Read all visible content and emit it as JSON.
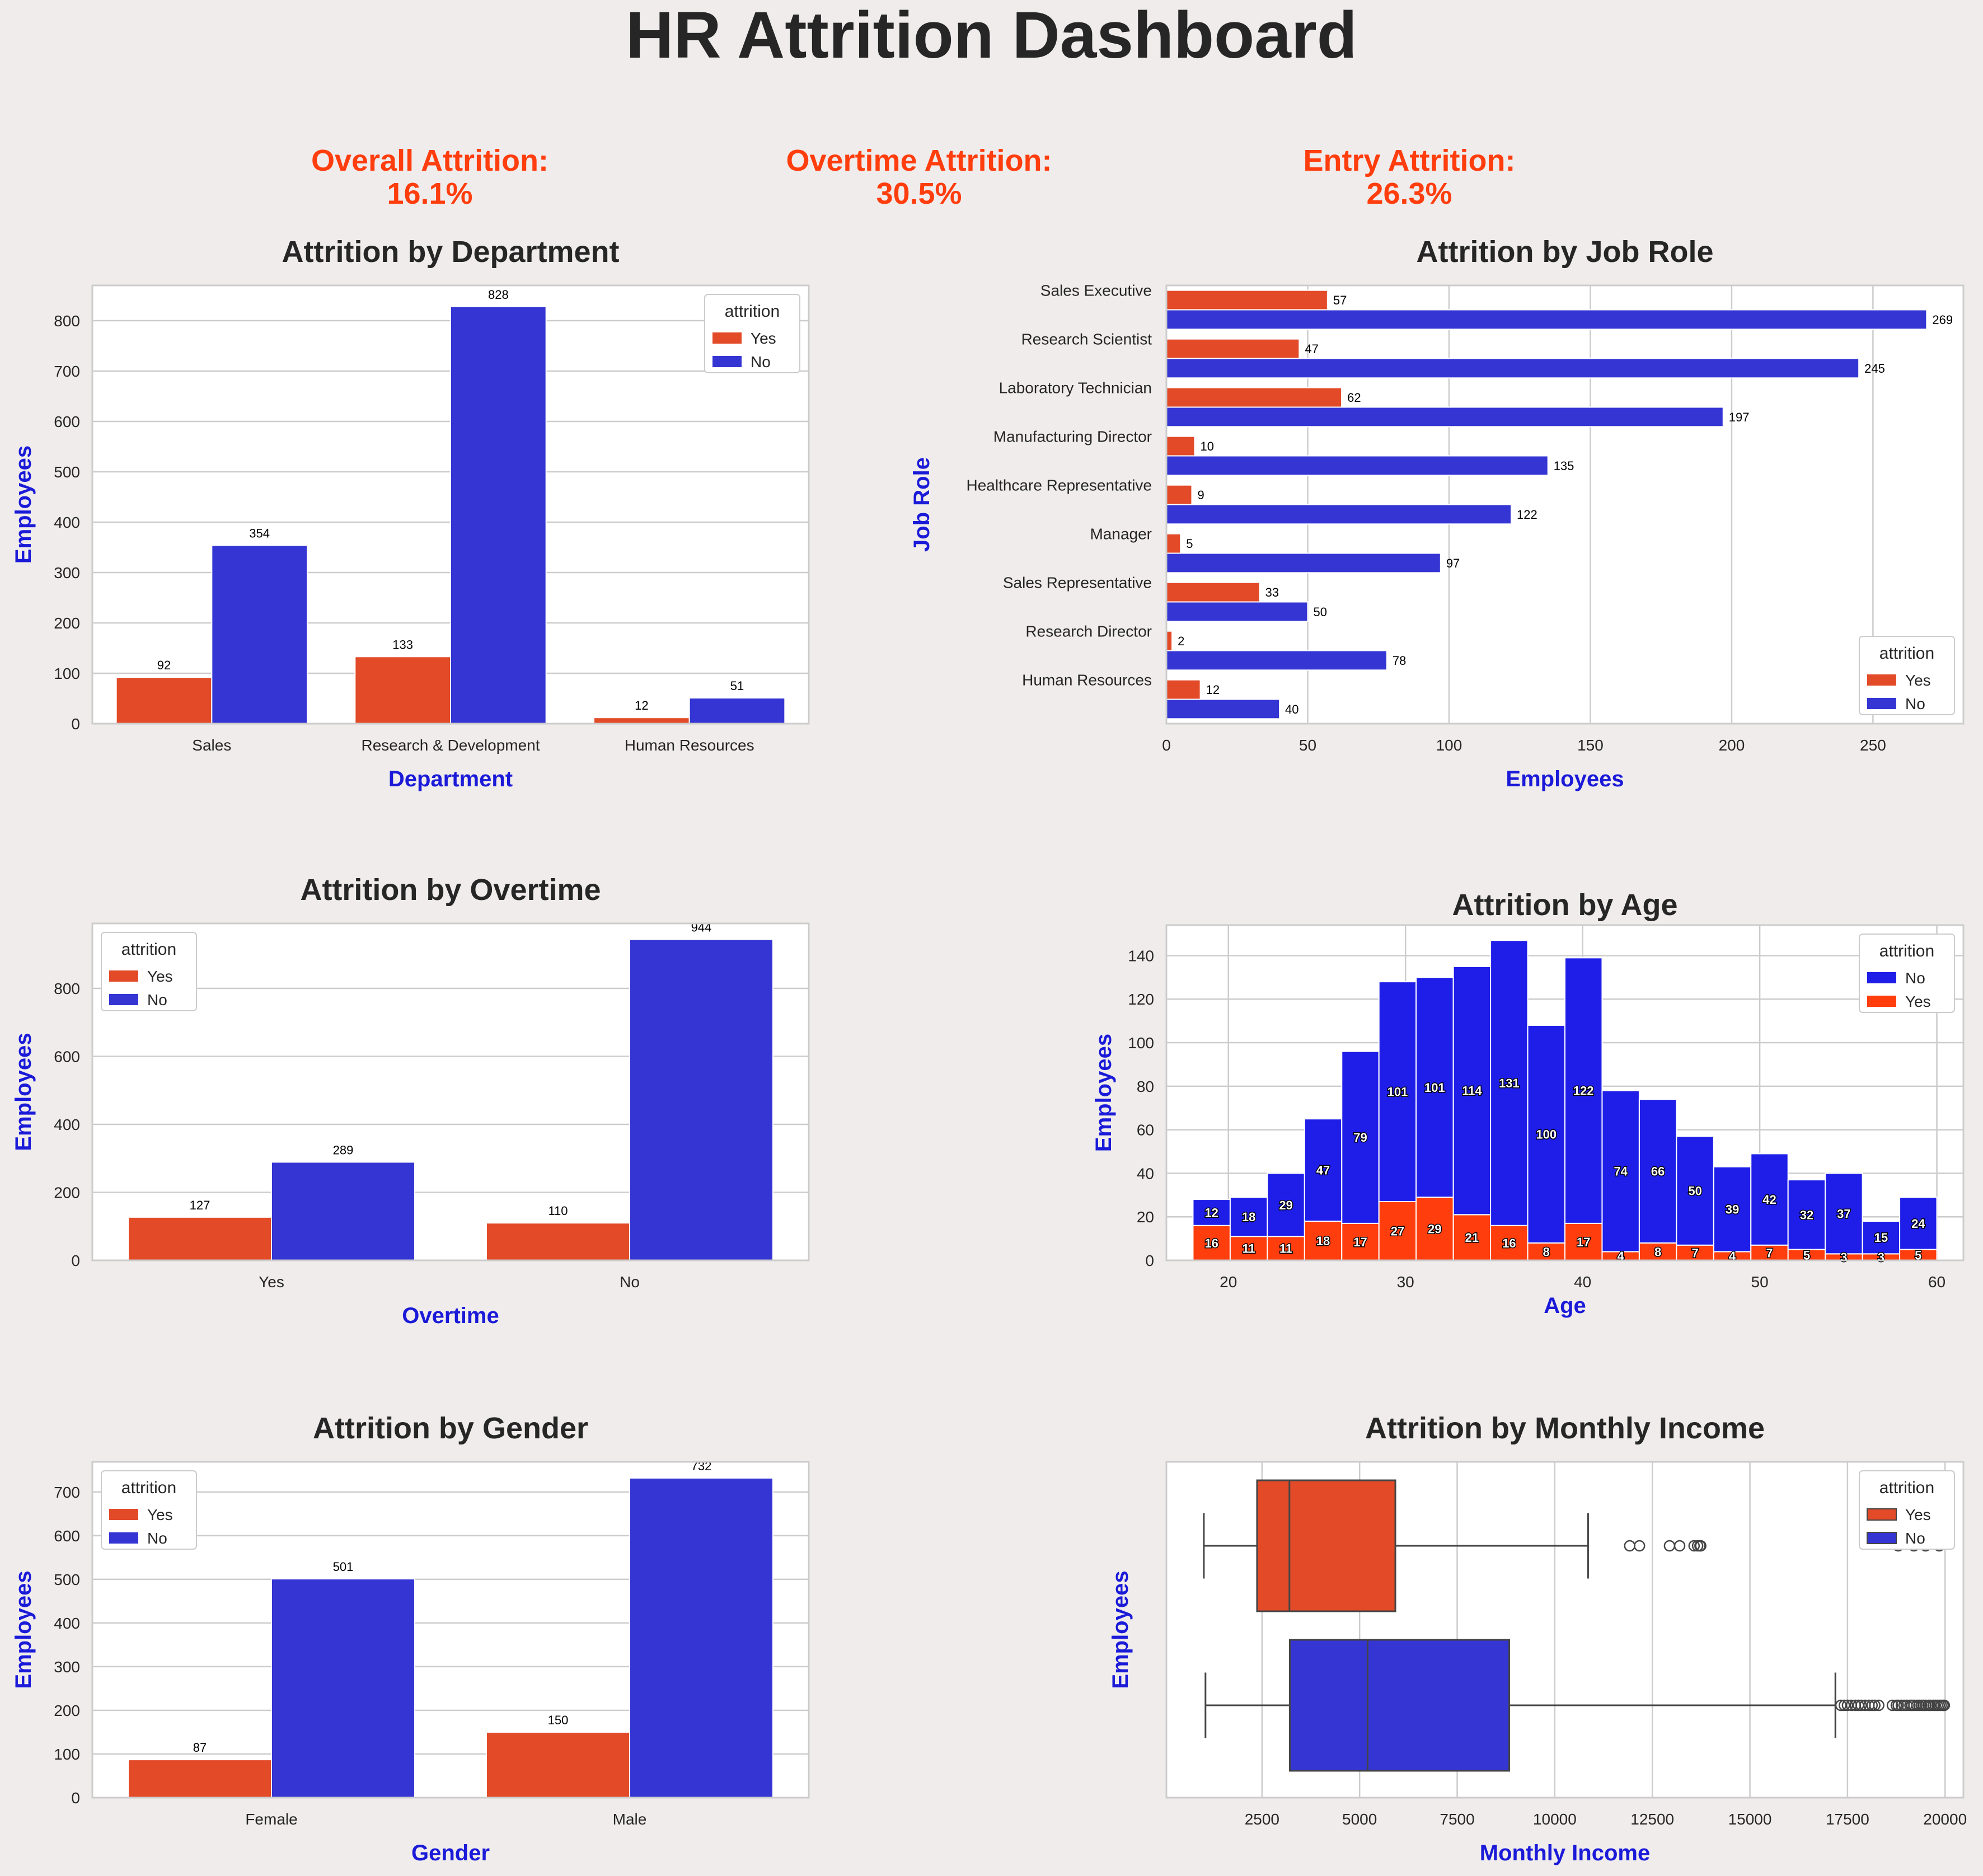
{
  "title": "HR Attrition Dashboard",
  "kpis": [
    {
      "label": "Overall Attrition:",
      "value": "16.1%"
    },
    {
      "label": "Overtime Attrition:",
      "value": "30.5%"
    },
    {
      "label": "Entry Attrition:",
      "value": "26.3%"
    }
  ],
  "colors": {
    "yes": "#e24a28",
    "no": "#3535d4",
    "axis_label": "#1a1ad8",
    "kpi": "#ff3d0d",
    "background": "#f0ecec"
  },
  "chart_data": [
    {
      "id": "department",
      "type": "bar",
      "title": "Attrition by Department",
      "xlabel": "Department",
      "ylabel": "Employees",
      "categories": [
        "Sales",
        "Research & Development",
        "Human Resources"
      ],
      "series": [
        {
          "name": "Yes",
          "values": [
            92,
            133,
            12
          ]
        },
        {
          "name": "No",
          "values": [
            354,
            828,
            51
          ]
        }
      ],
      "yticks": [
        0,
        100,
        200,
        300,
        400,
        500,
        600,
        700,
        800
      ],
      "ylim": [
        0,
        870
      ],
      "legend": {
        "title": "attrition",
        "position": "top-right"
      },
      "grid": true
    },
    {
      "id": "jobrole",
      "type": "bar",
      "orientation": "horizontal",
      "title": "Attrition by Job Role",
      "xlabel": "Employees",
      "ylabel": "Job Role",
      "categories": [
        "Sales Executive",
        "Research Scientist",
        "Laboratory Technician",
        "Manufacturing Director",
        "Healthcare Representative",
        "Manager",
        "Sales Representative",
        "Research Director",
        "Human Resources"
      ],
      "series": [
        {
          "name": "Yes",
          "values": [
            57,
            47,
            62,
            10,
            9,
            5,
            33,
            2,
            12
          ]
        },
        {
          "name": "No",
          "values": [
            269,
            245,
            197,
            135,
            122,
            97,
            50,
            78,
            40
          ]
        }
      ],
      "xticks": [
        0,
        50,
        100,
        150,
        200,
        250
      ],
      "xlim": [
        0,
        282
      ],
      "legend": {
        "title": "attrition",
        "position": "bottom-right"
      },
      "grid": true
    },
    {
      "id": "overtime",
      "type": "bar",
      "title": "Attrition by Overtime",
      "xlabel": "Overtime",
      "ylabel": "Employees",
      "categories": [
        "Yes",
        "No"
      ],
      "series": [
        {
          "name": "Yes",
          "values": [
            127,
            110
          ]
        },
        {
          "name": "No",
          "values": [
            289,
            944
          ]
        }
      ],
      "yticks": [
        0,
        200,
        400,
        600,
        800
      ],
      "ylim": [
        0,
        991
      ],
      "legend": {
        "title": "attrition",
        "position": "top-left"
      },
      "grid": true
    },
    {
      "id": "age",
      "type": "bar",
      "stacked": true,
      "title": "Attrition by Age",
      "xlabel": "Age",
      "ylabel": "Employees",
      "bin_edges": [
        18,
        20.1,
        22.2,
        24.3,
        26.4,
        28.5,
        30.6,
        32.7,
        34.8,
        36.9,
        39.0,
        41.1,
        43.2,
        45.3,
        47.4,
        49.5,
        51.6,
        53.7,
        55.8,
        57.9,
        60
      ],
      "series": [
        {
          "name": "No",
          "values": [
            12,
            18,
            29,
            47,
            79,
            101,
            101,
            114,
            131,
            100,
            122,
            74,
            66,
            50,
            39,
            42,
            32,
            37,
            15,
            24
          ]
        },
        {
          "name": "Yes",
          "values": [
            16,
            11,
            11,
            18,
            17,
            27,
            29,
            21,
            16,
            8,
            17,
            4,
            8,
            7,
            4,
            7,
            5,
            3,
            3,
            5
          ]
        }
      ],
      "xticks": [
        20,
        30,
        40,
        50,
        60
      ],
      "yticks": [
        0,
        20,
        40,
        60,
        80,
        100,
        120,
        140
      ],
      "xlim": [
        16.5,
        61.5
      ],
      "ylim": [
        0,
        154
      ],
      "legend": {
        "title": "attrition",
        "position": "top-right"
      },
      "grid": true
    },
    {
      "id": "gender",
      "type": "bar",
      "title": "Attrition by Gender",
      "xlabel": "Gender",
      "ylabel": "Employees",
      "categories": [
        "Female",
        "Male"
      ],
      "series": [
        {
          "name": "Yes",
          "values": [
            87,
            150
          ]
        },
        {
          "name": "No",
          "values": [
            501,
            732
          ]
        }
      ],
      "yticks": [
        0,
        100,
        200,
        300,
        400,
        500,
        600,
        700
      ],
      "ylim": [
        0,
        769
      ],
      "legend": {
        "title": "attrition",
        "position": "top-left"
      },
      "grid": true
    },
    {
      "id": "income",
      "type": "box",
      "title": "Attrition by Monthly Income",
      "xlabel": "Monthly Income",
      "ylabel": "Employees",
      "series": [
        {
          "name": "Yes",
          "whisker_low": 1009,
          "q1": 2373,
          "median": 3202,
          "q3": 5916,
          "whisker_high": 10854,
          "outliers": [
            11920,
            12170,
            12940,
            13200,
            13570,
            13660,
            13720,
            13740,
            18800,
            19200,
            19500,
            19850
          ]
        },
        {
          "name": "No",
          "whisker_low": 1051,
          "q1": 3211,
          "median": 5204,
          "q3": 8834,
          "whisker_high": 17190,
          "outliers": [
            17330,
            17420,
            17500,
            17600,
            17700,
            17780,
            17850,
            17950,
            18050,
            18130,
            18200,
            18300,
            18650,
            18750,
            18800,
            18880,
            18950,
            19020,
            19100,
            19150,
            19200,
            19280,
            19330,
            19400,
            19450,
            19500,
            19580,
            19620,
            19700,
            19750,
            19800,
            19850,
            19900,
            19950,
            19980
          ]
        }
      ],
      "xticks": [
        2500,
        5000,
        7500,
        10000,
        12500,
        15000,
        17500,
        20000
      ],
      "xlim": [
        50,
        20470
      ],
      "legend": {
        "title": "attrition",
        "position": "top-right"
      },
      "grid": true
    }
  ]
}
